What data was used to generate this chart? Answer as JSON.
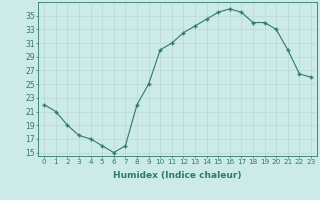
{
  "x": [
    0,
    1,
    2,
    3,
    4,
    5,
    6,
    7,
    8,
    9,
    10,
    11,
    12,
    13,
    14,
    15,
    16,
    17,
    18,
    19,
    20,
    21,
    22,
    23
  ],
  "y": [
    22,
    21,
    19,
    17.5,
    17,
    16,
    15,
    16,
    22,
    25,
    30,
    31,
    32.5,
    33.5,
    34.5,
    35.5,
    36,
    35.5,
    34,
    34,
    33,
    30,
    26.5,
    26
  ],
  "line_color": "#2d7a6e",
  "marker": "+",
  "marker_size": 3.5,
  "bg_color": "#cceae8",
  "grid_color": "#b8d8d6",
  "xlabel": "Humidex (Indice chaleur)",
  "yticks": [
    15,
    17,
    19,
    21,
    23,
    25,
    27,
    29,
    31,
    33,
    35
  ],
  "ylim": [
    14.5,
    37
  ],
  "xlim": [
    -0.5,
    23.5
  ],
  "xtick_fontsize": 5.2,
  "ytick_fontsize": 5.5,
  "xlabel_fontsize": 6.5
}
